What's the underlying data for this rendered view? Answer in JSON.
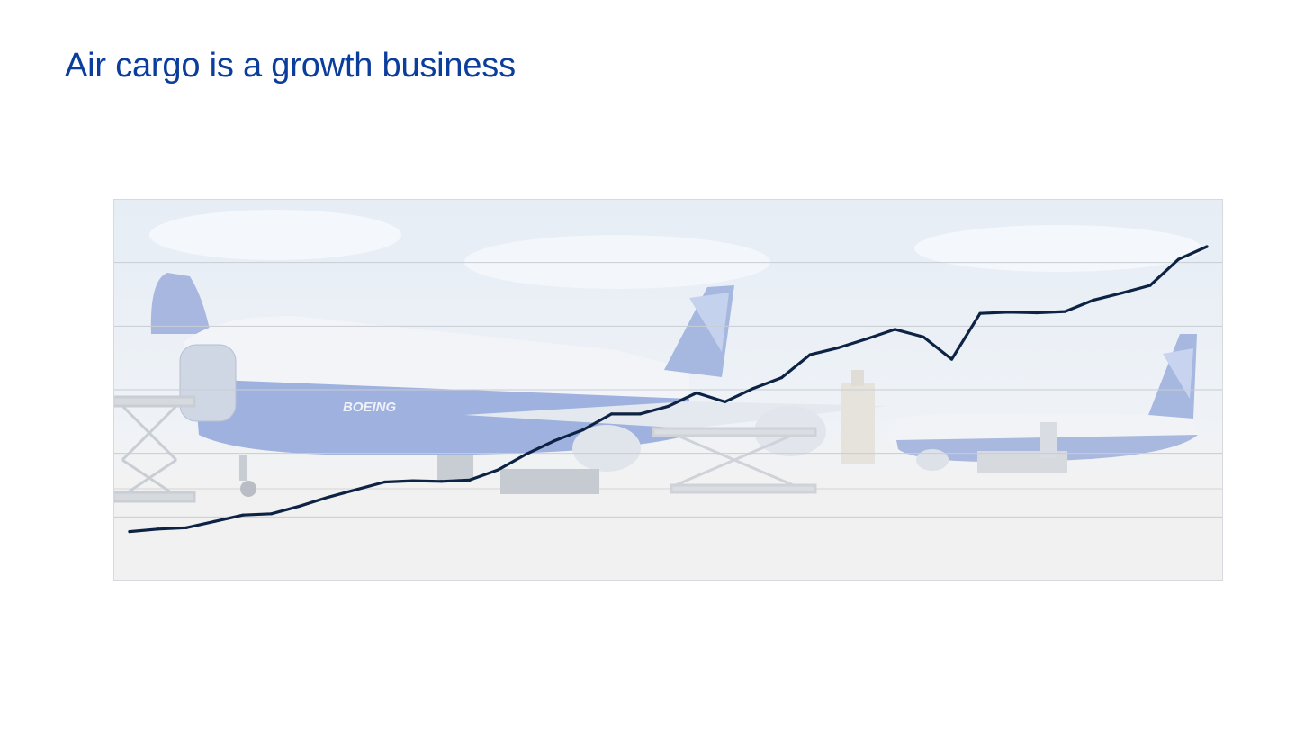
{
  "slide": {
    "title": "Air cargo is a growth business"
  },
  "colors": {
    "title": "#0b3d9c",
    "line": "#0d2344",
    "gridline": "#c8cdd4",
    "sky": "#e9eff6",
    "fuselage_white": "#f3f5f8",
    "fuselage_blue": "#9fb0dc",
    "tarmac": "#efefef"
  },
  "background_image": {
    "description_icon": "boeing-cargo-aircraft-photo",
    "logo_text": "BOEING"
  },
  "chart_data": {
    "type": "line",
    "title": "",
    "xlabel": "",
    "ylabel": "",
    "grid": true,
    "legend": "none",
    "ylim": [
      0,
      6
    ],
    "xlim": [
      0,
      39
    ],
    "x": [
      0,
      1,
      2,
      3,
      4,
      5,
      6,
      7,
      8,
      9,
      10,
      11,
      12,
      13,
      14,
      15,
      16,
      17,
      18,
      19,
      20,
      21,
      22,
      23,
      24,
      25,
      26,
      27,
      28,
      29,
      30,
      31,
      32,
      33,
      34,
      35,
      36,
      37,
      38
    ],
    "series": [
      {
        "values": [
          0.77,
          0.81,
          0.83,
          0.93,
          1.03,
          1.05,
          1.17,
          1.31,
          1.43,
          1.55,
          1.57,
          1.56,
          1.58,
          1.74,
          1.99,
          2.2,
          2.37,
          2.62,
          2.62,
          2.74,
          2.95,
          2.81,
          3.02,
          3.19,
          3.55,
          3.66,
          3.8,
          3.95,
          3.83,
          3.48,
          4.2,
          4.22,
          4.21,
          4.23,
          4.41,
          4.52,
          4.64,
          5.05,
          5.25
        ]
      }
    ]
  }
}
